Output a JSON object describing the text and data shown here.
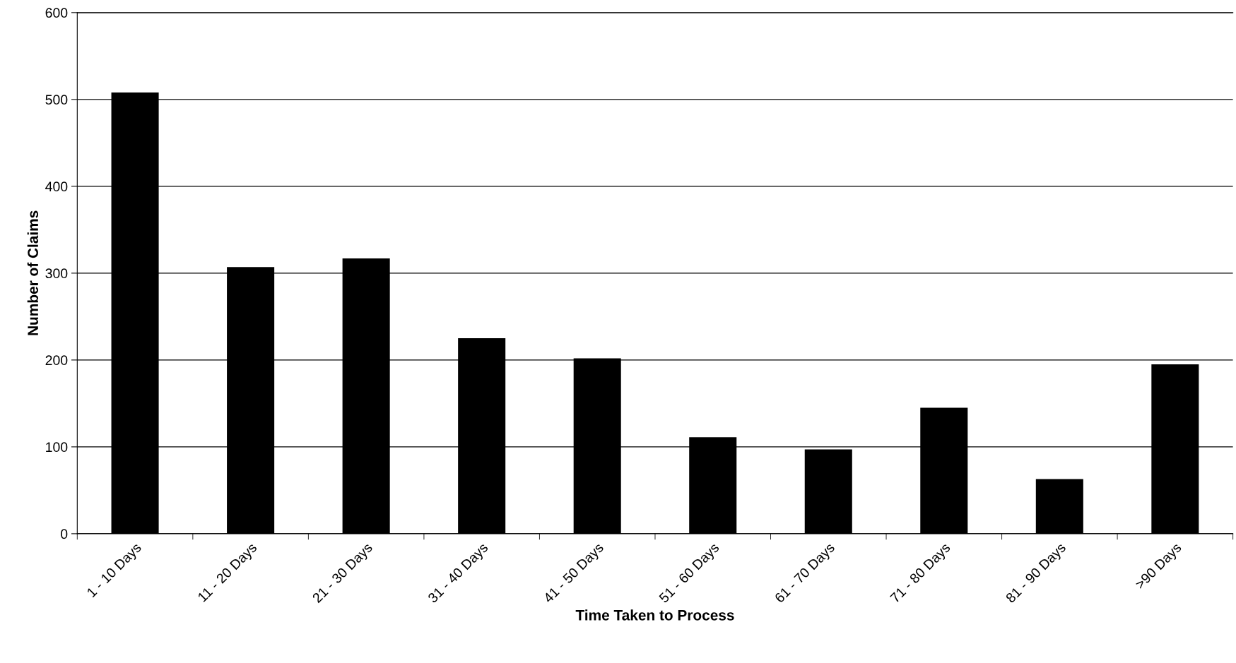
{
  "chart_data": {
    "type": "bar",
    "xlabel": "Time Taken to Process",
    "ylabel": "Number of Claims",
    "categories": [
      "1 - 10 Days",
      "11 - 20 Days",
      "21 - 30 Days",
      "31 - 40 Days",
      "41 - 50 Days",
      "51 - 60 Days",
      "61 - 70 Days",
      "71 - 80 Days",
      "81 - 90 Days",
      ">90 Days"
    ],
    "values": [
      508,
      307,
      317,
      225,
      202,
      111,
      97,
      145,
      63,
      195
    ],
    "color": "#000000",
    "ylim": [
      0,
      600
    ],
    "yticks": [
      0,
      100,
      200,
      300,
      400,
      500,
      600
    ],
    "grid": "y",
    "legend": false
  }
}
